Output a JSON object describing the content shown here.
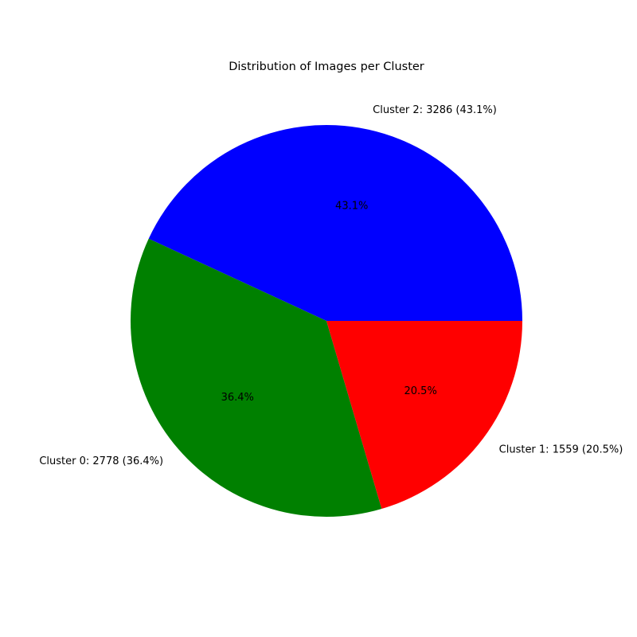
{
  "chart_data": {
    "type": "pie",
    "title": "Distribution of Images per Cluster",
    "start_angle_deg": 0,
    "direction": "counterclockwise",
    "slices": [
      {
        "category": "Cluster 2",
        "value": 3286,
        "percent": 43.1,
        "label": "Cluster 2: 3286 (43.1%)",
        "pct_label": "43.1%",
        "color": "#0000ff"
      },
      {
        "category": "Cluster 0",
        "value": 2778,
        "percent": 36.4,
        "label": "Cluster 0: 2778 (36.4%)",
        "pct_label": "36.4%",
        "color": "#008000"
      },
      {
        "category": "Cluster 1",
        "value": 1559,
        "percent": 20.5,
        "label": "Cluster 1: 1559 (20.5%)",
        "pct_label": "20.5%",
        "color": "#ff0000"
      }
    ]
  }
}
